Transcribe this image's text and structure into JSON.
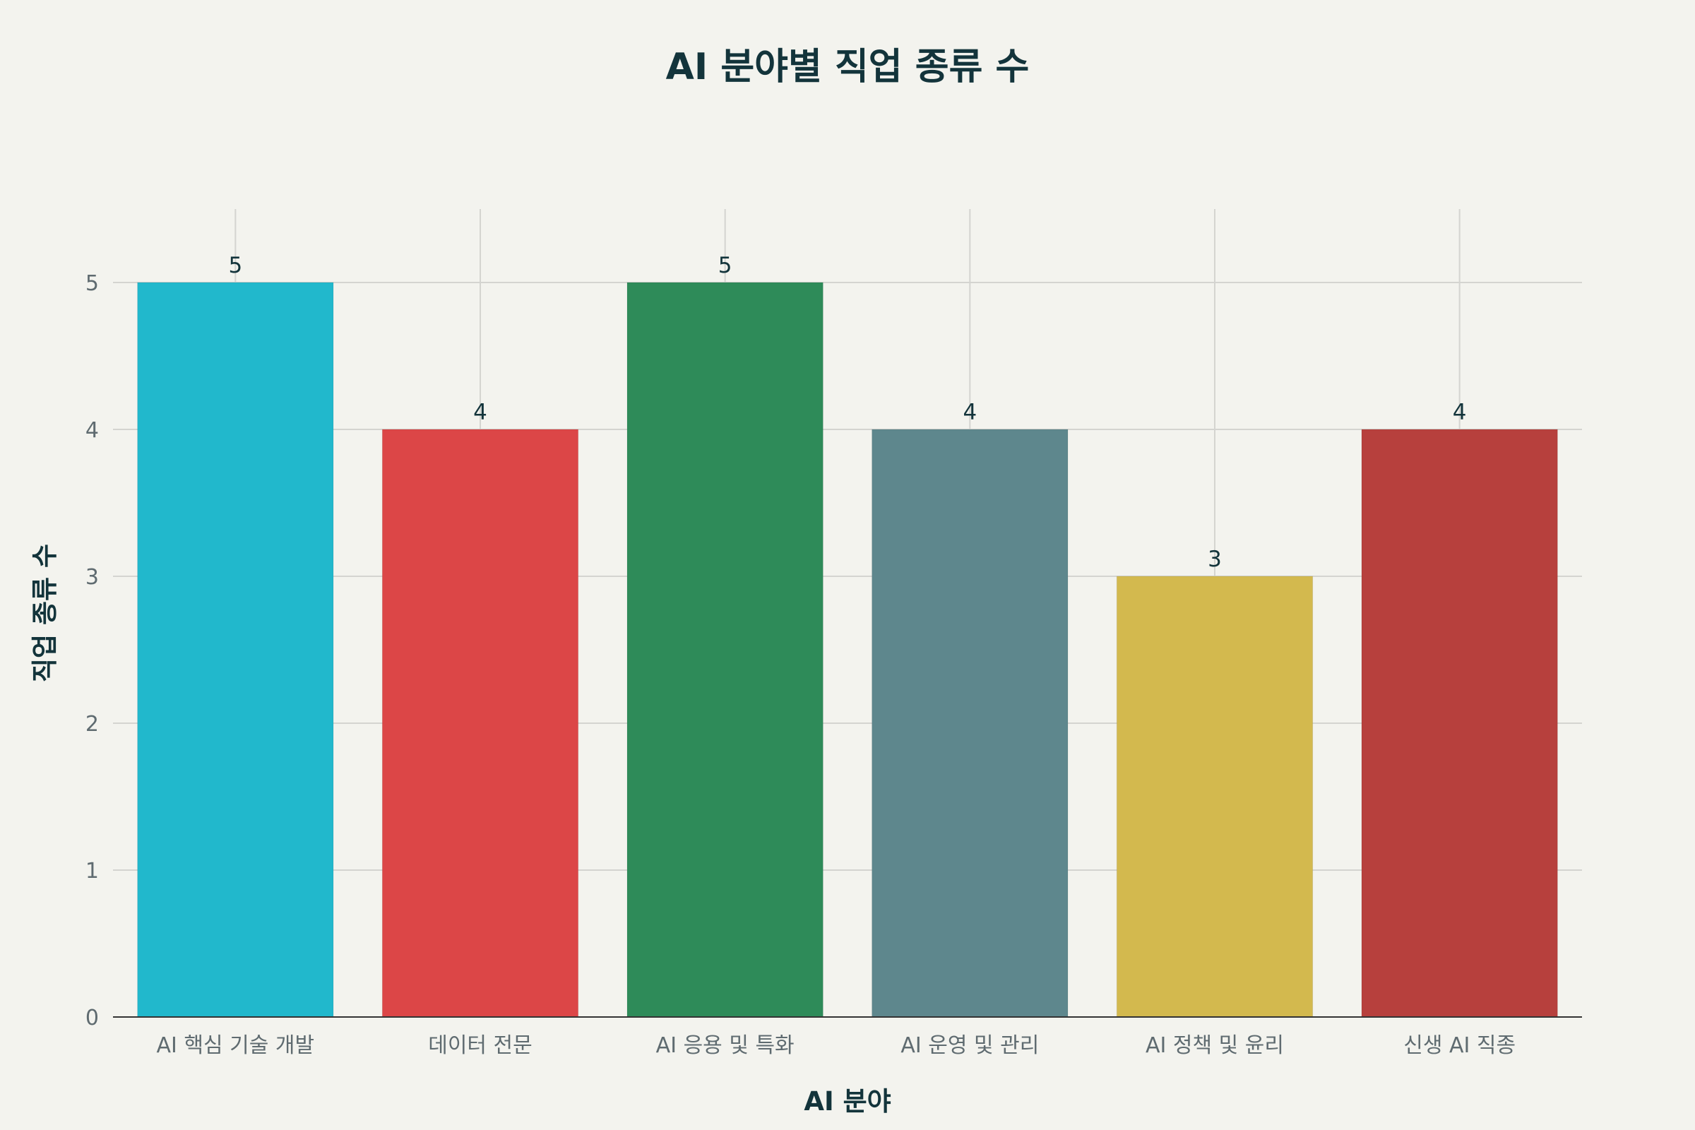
{
  "chart_data": {
    "type": "bar",
    "title": "AI 분야별 직업 종류 수",
    "xlabel": "AI 분야",
    "ylabel": "직업 종류 수",
    "categories": [
      "AI 핵심 기술 개발",
      "데이터 전문",
      "AI 응용 및 특화",
      "AI 운영 및 관리",
      "AI 정책 및 윤리",
      "신생 AI 직종"
    ],
    "values": [
      5,
      4,
      5,
      4,
      3,
      4
    ],
    "colors": [
      "#21b8cc",
      "#dc4647",
      "#2e8b59",
      "#5e878d",
      "#d3b94e",
      "#b7403d"
    ],
    "ylim": [
      0,
      5.5
    ],
    "yticks": [
      0,
      1,
      2,
      3,
      4,
      5
    ],
    "grid": true,
    "legend": "none"
  }
}
